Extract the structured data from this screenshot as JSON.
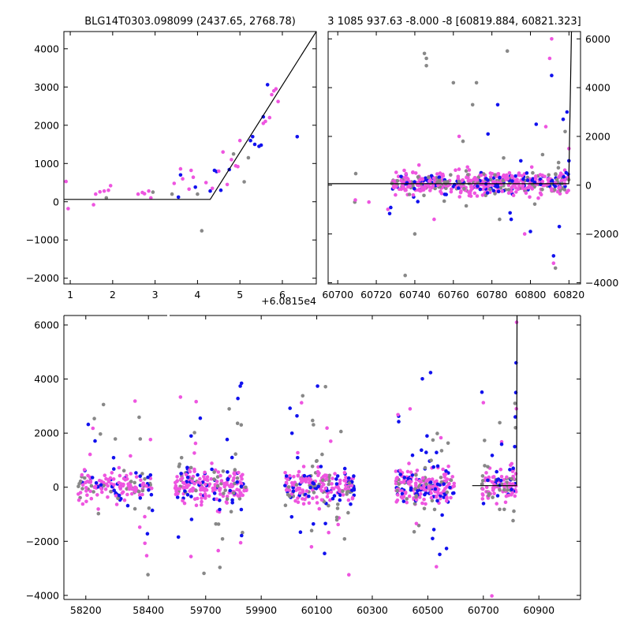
{
  "colors": {
    "magenta": "#ee55e0",
    "blue": "#1111ee",
    "gray": "#888888",
    "model": "#000000"
  },
  "chart_data": [
    {
      "type": "scatter",
      "title": "BLG14T0303.098099 (2437.65, 2768.78)",
      "xlim": [
        0.85,
        6.8
      ],
      "ylim": [
        -2150,
        4450
      ],
      "xticks": [
        1,
        2,
        3,
        4,
        5,
        6
      ],
      "yticks": [
        -2000,
        -1000,
        0,
        1000,
        2000,
        3000,
        4000
      ],
      "yaxis_side": "left",
      "x_offset_label": "+6.0815e4",
      "model_line": {
        "x": [
          0.85,
          4.3,
          6.8
        ],
        "y": [
          60,
          60,
          4450
        ]
      },
      "points": [
        [
          0.9,
          530,
          "m"
        ],
        [
          0.95,
          -180,
          "m"
        ],
        [
          1.55,
          -80,
          "m"
        ],
        [
          1.6,
          200,
          "m"
        ],
        [
          1.7,
          260,
          "m"
        ],
        [
          1.8,
          280,
          "m"
        ],
        [
          1.9,
          300,
          "m"
        ],
        [
          1.95,
          420,
          "m"
        ],
        [
          1.85,
          100,
          "g"
        ],
        [
          2.6,
          200,
          "m"
        ],
        [
          2.7,
          240,
          "m"
        ],
        [
          2.75,
          210,
          "m"
        ],
        [
          2.85,
          280,
          "m"
        ],
        [
          2.9,
          100,
          "m"
        ],
        [
          2.95,
          250,
          "g"
        ],
        [
          3.4,
          200,
          "g"
        ],
        [
          3.45,
          480,
          "m"
        ],
        [
          3.55,
          120,
          "b"
        ],
        [
          3.6,
          700,
          "b"
        ],
        [
          3.65,
          600,
          "m"
        ],
        [
          3.6,
          860,
          "m"
        ],
        [
          3.8,
          330,
          "m"
        ],
        [
          3.85,
          820,
          "m"
        ],
        [
          3.9,
          640,
          "m"
        ],
        [
          3.95,
          380,
          "b"
        ],
        [
          4.0,
          200,
          "g"
        ],
        [
          4.1,
          -760,
          "g"
        ],
        [
          4.2,
          500,
          "m"
        ],
        [
          4.3,
          280,
          "b"
        ],
        [
          4.35,
          350,
          "m"
        ],
        [
          4.4,
          820,
          "b"
        ],
        [
          4.45,
          790,
          "b"
        ],
        [
          4.5,
          800,
          "m"
        ],
        [
          4.55,
          300,
          "b"
        ],
        [
          4.6,
          1300,
          "m"
        ],
        [
          4.7,
          450,
          "m"
        ],
        [
          4.75,
          840,
          "b"
        ],
        [
          4.8,
          1100,
          "m"
        ],
        [
          4.85,
          1250,
          "g"
        ],
        [
          4.9,
          940,
          "m"
        ],
        [
          4.95,
          920,
          "m"
        ],
        [
          5.0,
          1600,
          "m"
        ],
        [
          5.1,
          520,
          "g"
        ],
        [
          5.2,
          1150,
          "g"
        ],
        [
          5.25,
          1600,
          "b"
        ],
        [
          5.3,
          1700,
          "b"
        ],
        [
          5.35,
          1500,
          "b"
        ],
        [
          5.45,
          1450,
          "b"
        ],
        [
          5.5,
          1480,
          "b"
        ],
        [
          5.55,
          2220,
          "b"
        ],
        [
          5.55,
          2050,
          "m"
        ],
        [
          5.6,
          2100,
          "m"
        ],
        [
          5.65,
          3060,
          "b"
        ],
        [
          5.7,
          2200,
          "m"
        ],
        [
          5.75,
          2800,
          "m"
        ],
        [
          5.8,
          2900,
          "m"
        ],
        [
          5.85,
          2950,
          "m"
        ],
        [
          5.9,
          2620,
          "m"
        ],
        [
          6.35,
          1700,
          "b"
        ]
      ]
    },
    {
      "type": "scatter",
      "title": "3 1085 937.63 -8.000 -8 [60819.884, 60821.323]",
      "xlim": [
        60695,
        60826
      ],
      "ylim": [
        -4050,
        6300
      ],
      "xticks": [
        60700,
        60720,
        60740,
        60760,
        60780,
        60800,
        60820
      ],
      "yticks": [
        -4000,
        -2000,
        0,
        2000,
        4000,
        6000
      ],
      "yaxis_side": "right",
      "model_line": {
        "x": [
          60695,
          60819.9,
          60821.3
        ],
        "y": [
          60,
          60,
          6300
        ]
      },
      "points": [
        [
          60735,
          -3700,
          "g"
        ],
        [
          60742,
          -200,
          "m"
        ],
        [
          60745,
          5400,
          "g"
        ],
        [
          60746,
          5200,
          "g"
        ],
        [
          60746,
          4900,
          "g"
        ],
        [
          60760,
          4200,
          "g"
        ],
        [
          60765,
          1800,
          "g"
        ],
        [
          60770,
          3300,
          "g"
        ],
        [
          60772,
          4200,
          "g"
        ],
        [
          60778,
          2100,
          "b"
        ],
        [
          60783,
          3300,
          "b"
        ],
        [
          60788,
          5500,
          "g"
        ],
        [
          60790,
          -1400,
          "b"
        ],
        [
          60795,
          1000,
          "b"
        ],
        [
          60797,
          -2000,
          "m"
        ],
        [
          60800,
          -1900,
          "b"
        ],
        [
          60803,
          2500,
          "b"
        ],
        [
          60808,
          2400,
          "m"
        ],
        [
          60810,
          5200,
          "m"
        ],
        [
          60811,
          6000,
          "m"
        ],
        [
          60811,
          4500,
          "b"
        ],
        [
          60813,
          -3400,
          "g"
        ],
        [
          60812,
          -2900,
          "b"
        ],
        [
          60812,
          -3200,
          "m"
        ],
        [
          60815,
          -1700,
          "b"
        ],
        [
          60817,
          2700,
          "b"
        ],
        [
          60818,
          2200,
          "g"
        ],
        [
          60819,
          3000,
          "b"
        ],
        [
          60820,
          1500,
          "m"
        ],
        [
          60820,
          1000,
          "b"
        ],
        [
          60763,
          2000,
          "m"
        ],
        [
          60750,
          -1400,
          "m"
        ],
        [
          60740,
          -2000,
          "g"
        ],
        [
          60784,
          -1400,
          "g"
        ]
      ]
    },
    {
      "type": "scatter",
      "title": "",
      "ylim": [
        -4150,
        6350
      ],
      "yticks": [
        -4000,
        -2000,
        0,
        2000,
        4000,
        6000
      ],
      "yaxis_side": "left",
      "segments": [
        {
          "xlim": [
            58130,
            58460
          ],
          "xticks": [
            58200,
            58400
          ]
        },
        {
          "xlim": [
            59570,
            61050
          ],
          "xticks": [
            59700,
            59900,
            60100,
            60300,
            60500,
            60700,
            60900
          ]
        }
      ],
      "model_line": {
        "x": [
          60660,
          60819.9,
          60821.3
        ],
        "y": [
          60,
          60,
          6350
        ]
      },
      "seasons": [
        {
          "range": [
            58175,
            58415
          ],
          "dense": 150,
          "out": 30
        },
        {
          "range": [
            59590,
            59850
          ],
          "dense": 200,
          "out": 50
        },
        {
          "range": [
            59985,
            60235
          ],
          "dense": 200,
          "out": 55
        },
        {
          "range": [
            60385,
            60595
          ],
          "dense": 200,
          "out": 50
        },
        {
          "range": [
            60695,
            60822
          ],
          "dense": 100,
          "out": 22
        }
      ]
    }
  ]
}
